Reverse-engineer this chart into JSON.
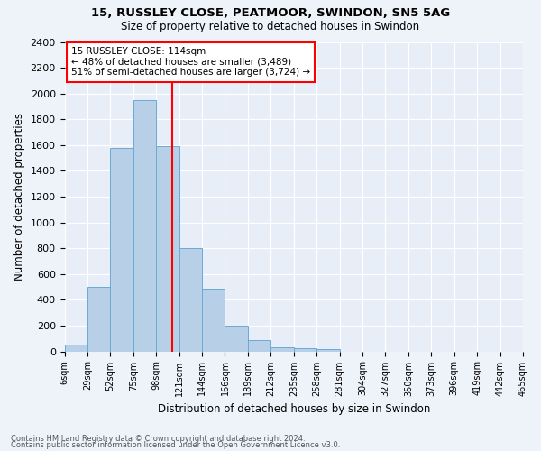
{
  "title1": "15, RUSSLEY CLOSE, PEATMOOR, SWINDON, SN5 5AG",
  "title2": "Size of property relative to detached houses in Swindon",
  "xlabel": "Distribution of detached houses by size in Swindon",
  "ylabel": "Number of detached properties",
  "bar_heights": [
    50,
    500,
    1580,
    1950,
    1590,
    800,
    490,
    200,
    90,
    35,
    25,
    20,
    0,
    0,
    0,
    0,
    0,
    0,
    0,
    0
  ],
  "categories": [
    "6sqm",
    "29sqm",
    "52sqm",
    "75sqm",
    "98sqm",
    "121sqm",
    "144sqm",
    "166sqm",
    "189sqm",
    "212sqm",
    "235sqm",
    "258sqm",
    "281sqm",
    "304sqm",
    "327sqm",
    "350sqm",
    "373sqm",
    "396sqm",
    "419sqm",
    "442sqm",
    "465sqm"
  ],
  "bar_color": "#b8cfe8",
  "bar_edge_color": "#6aaad4",
  "vline_color": "red",
  "annotation_text": "15 RUSSLEY CLOSE: 114sqm\n← 48% of detached houses are smaller (3,489)\n51% of semi-detached houses are larger (3,724) →",
  "annotation_box_color": "white",
  "annotation_box_edge": "red",
  "ylim": [
    0,
    2400
  ],
  "footnote1": "Contains HM Land Registry data © Crown copyright and database right 2024.",
  "footnote2": "Contains public sector information licensed under the Open Government Licence v3.0.",
  "background_color": "#eef2f9",
  "plot_bg_color": "#e8eef8"
}
